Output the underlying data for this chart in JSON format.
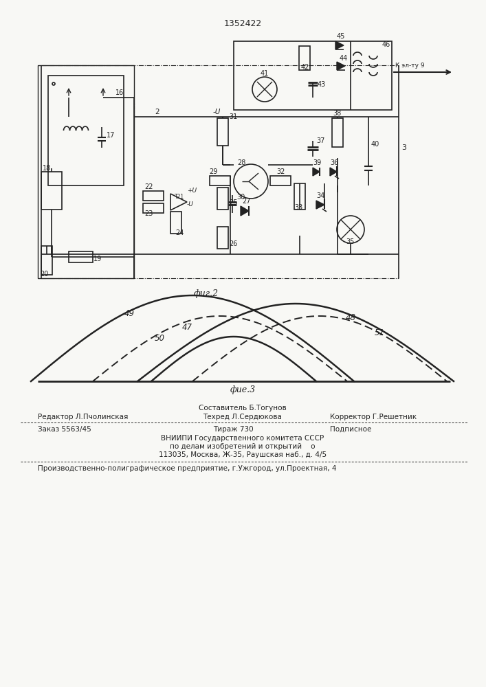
{
  "patent_number": "1352422",
  "fig2_label": "фиг.2",
  "fig3_label": "фие.3",
  "bg_color": "#f8f8f5",
  "line_color": "#222222",
  "footer": {
    "editor": "Редактор Л.Пчолинская",
    "composer": "Составитель Б.Тогунов",
    "techred": "Техред Л.Сердюкова",
    "corrector": "Корректор Г.Решетник",
    "order": "Заказ 5563/45",
    "tirazh": "Тираж 730",
    "podpisnoe": "Подписное",
    "vnipi_line1": "ВНИИПИ Государственного комитета СССР",
    "vnipi_line2": "по делам изобретений и открытий    о",
    "vnipi_line3": "113035, Москва, Ж-35, Раушская наб., д. 4/5",
    "production": "Производственно-полиграфическое предприятие, г.Ужгород, ул.Проектная, 4"
  }
}
